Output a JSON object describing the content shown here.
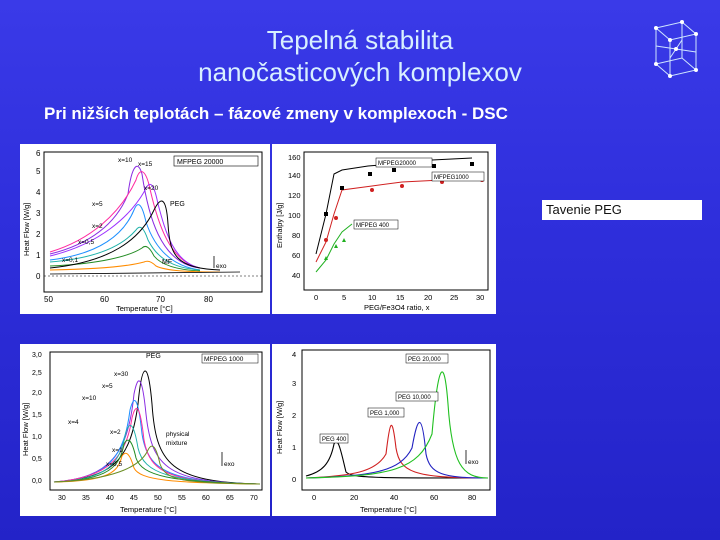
{
  "slide": {
    "title_line1": "Tepelná stabilita",
    "title_line2": "nanočasticových komplexov",
    "subtitle": "Pri nižších teplotách – fázové zmeny v komplexoch - DSC",
    "note": "Tavenie PEG"
  },
  "plot1": {
    "ylabel": "Heat Flow [W/g]",
    "xlabel": "Temperature [°C]",
    "xticks": [
      "50",
      "60",
      "70",
      "80"
    ],
    "yticks": [
      "0",
      "1",
      "2",
      "3",
      "4",
      "5",
      "6"
    ],
    "legend": "MFPEG 20000",
    "labels": [
      "x=10",
      "x=15",
      "x=20",
      "x=5",
      "x=2",
      "x=0,5",
      "x=0,1",
      "PEG",
      "MF",
      "exo"
    ]
  },
  "plot2": {
    "ylabel": "Enthalpy [J/g]",
    "xlabel": "PEG/Fe3O4 ratio, x",
    "xticks": [
      "0",
      "5",
      "10",
      "15",
      "20",
      "25",
      "30"
    ],
    "yticks": [
      "40",
      "60",
      "80",
      "100",
      "120",
      "140",
      "160"
    ],
    "series": [
      "MFPEG20000",
      "MFPEG1000",
      "MFPEG 400"
    ]
  },
  "plot3": {
    "ylabel": "Heat Flow [W/g]",
    "xlabel": "Temperature [°C]",
    "xticks": [
      "30",
      "35",
      "40",
      "45",
      "50",
      "55",
      "60",
      "65",
      "70"
    ],
    "yticks": [
      "0,0",
      "0,5",
      "1,0",
      "1,5",
      "2,0",
      "2,5",
      "3,0"
    ],
    "legend": "MFPEG 1000",
    "labels": [
      "PEG",
      "x=30",
      "x=5",
      "x=10",
      "x=4",
      "x=2",
      "x=1",
      "x=0,5",
      "physical",
      "mixture",
      "exo"
    ]
  },
  "plot4": {
    "ylabel": "Heat Flow [W/g]",
    "xlabel": "Temperature [°C]",
    "xticks": [
      "0",
      "20",
      "40",
      "60",
      "80"
    ],
    "yticks": [
      "0",
      "1",
      "2",
      "3",
      "4"
    ],
    "labels": [
      "PEG 20,000",
      "PEG 10,000",
      "PEG 1,000",
      "PEG 400",
      "exo"
    ]
  },
  "colors": {
    "background": "#2f2fdc",
    "title": "#d8f0ff"
  }
}
